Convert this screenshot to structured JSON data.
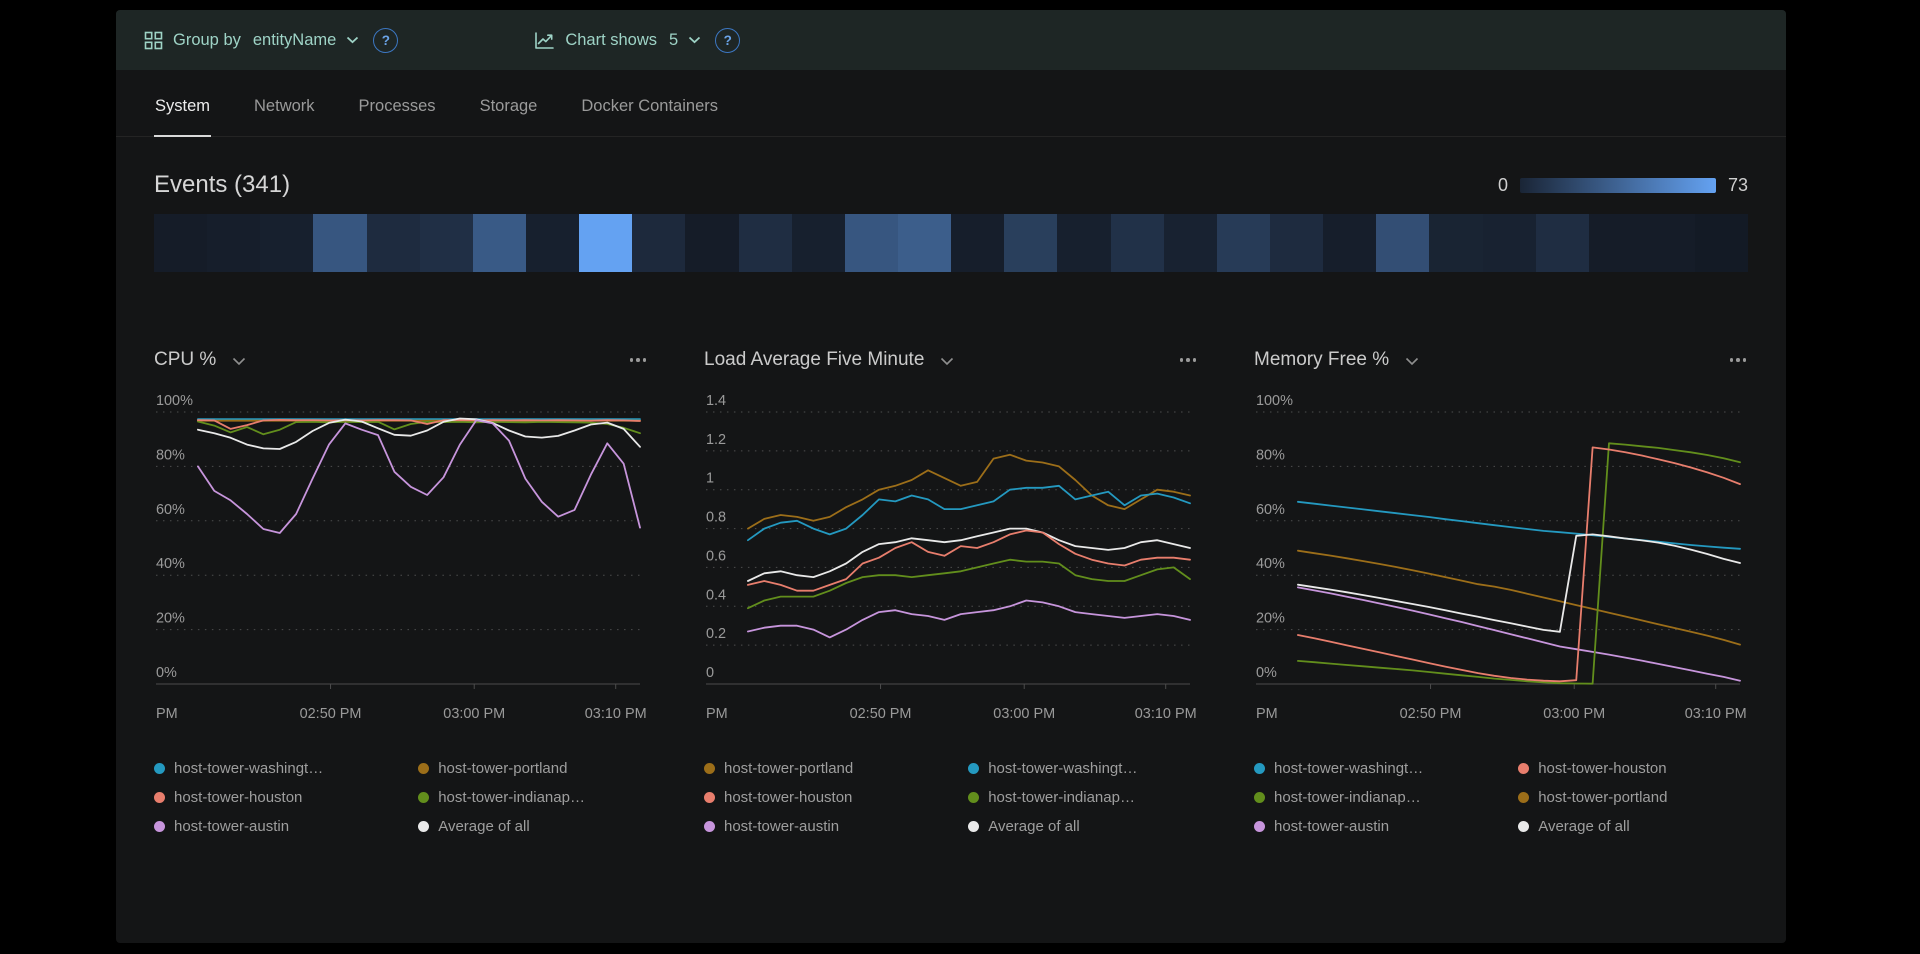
{
  "topbar": {
    "group_by": {
      "label": "Group by",
      "value": "entityName"
    },
    "chart_shows": {
      "label": "Chart shows",
      "value": "5"
    },
    "help_glyph": "?"
  },
  "icons": {
    "group_by": "grid-icon",
    "chart_shows": "line-chart-icon",
    "help": "help-icon",
    "chevron": "chevron-down-icon",
    "more": "ellipsis-icon"
  },
  "tabs": [
    {
      "label": "System",
      "active": true
    },
    {
      "label": "Network",
      "active": false
    },
    {
      "label": "Processes",
      "active": false
    },
    {
      "label": "Storage",
      "active": false
    },
    {
      "label": "Docker Containers",
      "active": false
    }
  ],
  "events": {
    "title": "Events (341)",
    "scale_min": "0",
    "scale_max": "73",
    "max": 73,
    "colors": {
      "low": "#10141c",
      "high": "#64a2f2"
    },
    "heatmap_values": [
      4,
      5,
      6,
      34,
      12,
      14,
      36,
      6,
      73,
      11,
      4,
      13,
      6,
      34,
      38,
      5,
      22,
      6,
      15,
      7,
      20,
      12,
      5,
      30,
      8,
      7,
      13,
      4,
      4,
      3
    ]
  },
  "palette": {
    "washington": {
      "label": "host-tower-washingt…",
      "color": "#2499c0"
    },
    "houston": {
      "label": "host-tower-houston",
      "color": "#e87e6d"
    },
    "austin": {
      "label": "host-tower-austin",
      "color": "#c795dc"
    },
    "portland": {
      "label": "host-tower-portland",
      "color": "#9c6e19"
    },
    "indianapolis": {
      "label": "host-tower-indianap…",
      "color": "#628e1c"
    },
    "average": {
      "label": "Average of all",
      "color": "#e9e9e9"
    }
  },
  "chart_data": [
    {
      "type": "line",
      "title": "CPU %",
      "ylim": [
        0,
        100
      ],
      "y_ticks": [
        {
          "v": 100,
          "label": "100%"
        },
        {
          "v": 80,
          "label": "80%"
        },
        {
          "v": 60,
          "label": "60%"
        },
        {
          "v": 40,
          "label": "40%"
        },
        {
          "v": 20,
          "label": "20%"
        },
        {
          "v": 0,
          "label": "0%"
        }
      ],
      "x_labels": [
        {
          "f": 0,
          "label": "PM",
          "align": "start"
        },
        {
          "f": 0.3,
          "label": "02:50 PM"
        },
        {
          "f": 0.625,
          "label": "03:00 PM"
        },
        {
          "f": 0.945,
          "label": "03:10 PM"
        }
      ],
      "series": [
        {
          "key": "washington",
          "values": [
            97.4,
            97.4,
            97.4,
            97.4,
            97.4,
            97.4,
            97.4,
            97.4,
            97.4,
            97.4,
            97.4,
            97.4,
            97.4,
            97.4,
            97.4,
            97.4,
            97.4,
            97.4,
            97.4,
            97.4,
            97.4,
            97.4,
            97.4,
            97.4,
            97.4,
            97.4,
            97.4,
            97.4
          ]
        },
        {
          "key": "portland",
          "values": [
            96.8,
            96.8,
            96.8,
            96.8,
            96.8,
            96.8,
            96.8,
            96.8,
            96.8,
            96.8,
            96.8,
            96.8,
            96.8,
            96.8,
            96.8,
            96.8,
            96.8,
            96.8,
            96.8,
            96.8,
            96.8,
            96.8,
            96.8,
            96.8,
            96.8,
            96.8,
            96.8,
            96.8
          ]
        },
        {
          "key": "indianapolis",
          "values": [
            96.5,
            95,
            92.5,
            94.5,
            91.8,
            93.5,
            96.3,
            96.4,
            96.2,
            96.4,
            96.3,
            96.4,
            93.6,
            95.6,
            96.4,
            96.3,
            96.4,
            96.2,
            96.4,
            96.3,
            96.2,
            96.4,
            96.3,
            96.2,
            96.1,
            95.6,
            94.2,
            92.2
          ]
        },
        {
          "key": "houston",
          "values": [
            97,
            96.9,
            93.8,
            95.2,
            96.9,
            97.1,
            97,
            97,
            96.9,
            97,
            96.9,
            97,
            97,
            96.9,
            95.6,
            97,
            97,
            96.9,
            97,
            96.9,
            97,
            96.9,
            97,
            96.9,
            96.8,
            97,
            96.9,
            96.7
          ]
        },
        {
          "key": "average",
          "values": [
            93.5,
            92.2,
            90.5,
            88,
            86.6,
            86.4,
            89,
            93,
            96,
            97.2,
            96.5,
            94,
            91.6,
            91.3,
            93.2,
            96.4,
            97.6,
            97.3,
            96,
            93.2,
            91,
            90.6,
            91.2,
            93.2,
            95.4,
            96.1,
            93.8,
            87.2
          ]
        },
        {
          "key": "austin",
          "values": [
            80,
            71,
            67.5,
            62.5,
            57,
            55.5,
            62.5,
            75.5,
            88,
            95.8,
            93.5,
            91.5,
            78,
            72.5,
            69.5,
            76,
            88,
            97,
            95.8,
            89.5,
            75.5,
            67,
            61.5,
            64,
            77,
            88.5,
            81,
            57.5
          ]
        }
      ],
      "legend": [
        "washington",
        "houston",
        "austin",
        "portland",
        "indianapolis",
        "average"
      ]
    },
    {
      "type": "line",
      "title": "Load Average Five Minute",
      "ylim": [
        0,
        1.4
      ],
      "y_ticks": [
        {
          "v": 1.4,
          "label": "1.4"
        },
        {
          "v": 1.2,
          "label": "1.2"
        },
        {
          "v": 1.0,
          "label": "1"
        },
        {
          "v": 0.8,
          "label": "0.8"
        },
        {
          "v": 0.6,
          "label": "0.6"
        },
        {
          "v": 0.4,
          "label": "0.4"
        },
        {
          "v": 0.2,
          "label": "0.2"
        },
        {
          "v": 0,
          "label": "0"
        }
      ],
      "x_labels": [
        {
          "f": 0,
          "label": "PM",
          "align": "start"
        },
        {
          "f": 0.3,
          "label": "02:50 PM"
        },
        {
          "f": 0.625,
          "label": "03:00 PM"
        },
        {
          "f": 0.945,
          "label": "03:10 PM"
        }
      ],
      "series": [
        {
          "key": "portland",
          "values": [
            0.8,
            0.85,
            0.87,
            0.86,
            0.84,
            0.86,
            0.91,
            0.95,
            1.0,
            1.02,
            1.05,
            1.1,
            1.06,
            1.02,
            1.04,
            1.16,
            1.18,
            1.15,
            1.14,
            1.12,
            1.05,
            0.97,
            0.92,
            0.9,
            0.95,
            1.0,
            0.99,
            0.97
          ]
        },
        {
          "key": "washington",
          "values": [
            0.74,
            0.8,
            0.83,
            0.84,
            0.8,
            0.77,
            0.8,
            0.87,
            0.95,
            0.94,
            0.97,
            0.95,
            0.9,
            0.9,
            0.92,
            0.94,
            1.0,
            1.01,
            1.01,
            1.02,
            0.95,
            0.97,
            0.99,
            0.92,
            0.97,
            0.98,
            0.96,
            0.93
          ]
        },
        {
          "key": "average",
          "values": [
            0.53,
            0.57,
            0.58,
            0.56,
            0.55,
            0.58,
            0.62,
            0.68,
            0.72,
            0.73,
            0.75,
            0.74,
            0.73,
            0.74,
            0.76,
            0.78,
            0.8,
            0.8,
            0.78,
            0.74,
            0.71,
            0.7,
            0.69,
            0.7,
            0.73,
            0.74,
            0.72,
            0.7
          ]
        },
        {
          "key": "houston",
          "values": [
            0.51,
            0.53,
            0.51,
            0.48,
            0.48,
            0.51,
            0.54,
            0.62,
            0.65,
            0.7,
            0.73,
            0.68,
            0.66,
            0.71,
            0.7,
            0.73,
            0.77,
            0.79,
            0.78,
            0.72,
            0.67,
            0.64,
            0.62,
            0.61,
            0.64,
            0.65,
            0.65,
            0.64
          ]
        },
        {
          "key": "indianapolis",
          "values": [
            0.39,
            0.43,
            0.45,
            0.45,
            0.45,
            0.48,
            0.52,
            0.55,
            0.56,
            0.56,
            0.55,
            0.56,
            0.57,
            0.58,
            0.6,
            0.62,
            0.64,
            0.63,
            0.63,
            0.62,
            0.56,
            0.54,
            0.53,
            0.53,
            0.56,
            0.59,
            0.6,
            0.54
          ]
        },
        {
          "key": "austin",
          "values": [
            0.27,
            0.29,
            0.3,
            0.3,
            0.28,
            0.24,
            0.28,
            0.33,
            0.37,
            0.38,
            0.36,
            0.35,
            0.33,
            0.36,
            0.37,
            0.38,
            0.4,
            0.43,
            0.42,
            0.4,
            0.37,
            0.36,
            0.35,
            0.34,
            0.35,
            0.36,
            0.35,
            0.33
          ]
        }
      ],
      "legend": [
        "portland",
        "houston",
        "austin",
        "washington",
        "indianapolis",
        "average"
      ]
    },
    {
      "type": "line",
      "title": "Memory Free %",
      "ylim": [
        0,
        100
      ],
      "y_ticks": [
        {
          "v": 100,
          "label": "100%"
        },
        {
          "v": 80,
          "label": "80%"
        },
        {
          "v": 60,
          "label": "60%"
        },
        {
          "v": 40,
          "label": "40%"
        },
        {
          "v": 20,
          "label": "20%"
        },
        {
          "v": 0,
          "label": "0%"
        }
      ],
      "x_labels": [
        {
          "f": 0,
          "label": "PM",
          "align": "start"
        },
        {
          "f": 0.3,
          "label": "02:50 PM"
        },
        {
          "f": 0.625,
          "label": "03:00 PM"
        },
        {
          "f": 0.945,
          "label": "03:10 PM"
        }
      ],
      "series": [
        {
          "key": "austin",
          "values": [
            35.5,
            34.4,
            33.3,
            32.1,
            30.9,
            29.6,
            28.3,
            27.0,
            25.6,
            24.2,
            22.8,
            21.3,
            19.8,
            18.3,
            16.8,
            15.3,
            13.8,
            12.8,
            11.8,
            10.8,
            9.7,
            8.6,
            7.4,
            6.2,
            5.0,
            3.8,
            2.6,
            1.2
          ]
        },
        {
          "key": "portland",
          "values": [
            49,
            48.1,
            47.2,
            46.2,
            45.2,
            44.1,
            43.0,
            41.8,
            40.6,
            39.3,
            38.0,
            36.7,
            35.8,
            34.6,
            33.2,
            31.8,
            30.4,
            29.0,
            27.6,
            26.2,
            24.8,
            23.4,
            22.0,
            20.6,
            19.2,
            17.8,
            16.2,
            14.5
          ]
        },
        {
          "key": "washington",
          "values": [
            67,
            66.3,
            65.6,
            64.9,
            64.2,
            63.5,
            62.8,
            62.1,
            61.4,
            60.6,
            59.9,
            59.1,
            58.4,
            57.7,
            57.0,
            56.3,
            55.8,
            55.3,
            54.7,
            54.1,
            53.5,
            52.9,
            52.3,
            51.7,
            51.1,
            50.6,
            50.1,
            49.7
          ]
        },
        {
          "key": "indianapolis",
          "values": [
            8.5,
            8.0,
            7.5,
            7.0,
            6.5,
            6.0,
            5.5,
            5.0,
            4.4,
            3.8,
            3.2,
            2.6,
            2.0,
            1.5,
            1.0,
            0.6,
            0.3,
            0.2,
            0.1,
            88.5,
            88.0,
            87.4,
            86.8,
            86.0,
            85.2,
            84.2,
            83.0,
            81.5
          ]
        },
        {
          "key": "houston",
          "values": [
            18,
            16.8,
            15.5,
            14.2,
            12.9,
            11.6,
            10.3,
            9.0,
            7.7,
            6.4,
            5.2,
            4.0,
            3.0,
            2.2,
            1.6,
            1.2,
            1.0,
            1.4,
            87.0,
            86.2,
            85.2,
            84.0,
            82.6,
            81.2,
            79.6,
            77.8,
            75.8,
            73.5
          ]
        },
        {
          "key": "average",
          "values": [
            36.5,
            35.6,
            34.7,
            33.7,
            32.7,
            31.6,
            30.5,
            29.4,
            28.3,
            27.1,
            25.9,
            24.7,
            23.5,
            22.3,
            21.1,
            19.9,
            19.2,
            54.5,
            55.0,
            54.3,
            53.5,
            52.8,
            52.0,
            50.8,
            49.4,
            47.8,
            46.0,
            44.5
          ]
        }
      ],
      "legend": [
        "washington",
        "indianapolis",
        "austin",
        "houston",
        "portland",
        "average"
      ]
    }
  ]
}
